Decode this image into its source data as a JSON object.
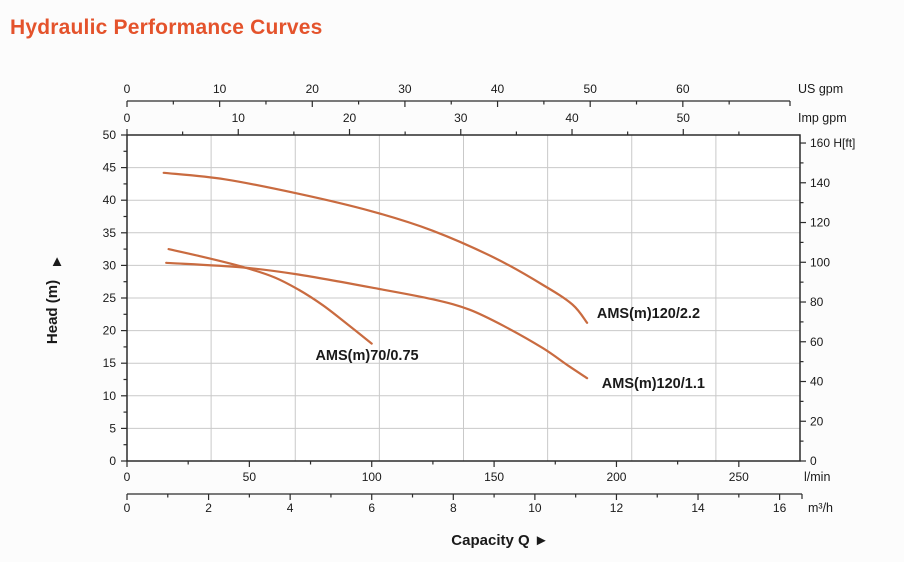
{
  "title": "Hydraulic Performance Curves",
  "colors": {
    "title": "#E4532C",
    "curve": "#C96B40",
    "grid": "#C9C9C9",
    "axis": "#2B2B2B",
    "text": "#1A1A1A",
    "background": "#FCFCFC",
    "plot_background": "#FFFFFF"
  },
  "chart_data": {
    "type": "line",
    "title": "Hydraulic Performance Curves",
    "xlabel": "Capacity Q",
    "xlabel_arrow": "►",
    "ylabel": "Head (m)",
    "ylabel_arrow": "▲",
    "xlim_lmin": [
      0,
      275
    ],
    "ylim_m": [
      0,
      50
    ],
    "grid": {
      "x_divisions": 8,
      "y_divisions": 10,
      "visible": true
    },
    "x_axes": [
      {
        "id": "us_gpm",
        "unit_label": "US gpm",
        "lmin_per_unit": 3.78541,
        "major_ticks": [
          0,
          10,
          20,
          30,
          40,
          50,
          60
        ],
        "minor_step": 5
      },
      {
        "id": "imp_gpm",
        "unit_label": "Imp gpm",
        "lmin_per_unit": 4.54609,
        "major_ticks": [
          0,
          10,
          20,
          30,
          40,
          50
        ],
        "minor_step": 5
      },
      {
        "id": "l_min",
        "unit_label": "l/min",
        "lmin_per_unit": 1,
        "major_ticks": [
          0,
          50,
          100,
          150,
          200,
          250
        ],
        "minor_step": 25
      },
      {
        "id": "m3_h",
        "unit_label": "m³/h",
        "lmin_per_unit": 16.6667,
        "major_ticks": [
          0,
          2,
          4,
          6,
          8,
          10,
          12,
          14,
          16
        ],
        "minor_step": 1
      }
    ],
    "y_axes": [
      {
        "id": "head_m",
        "unit_label": "Head (m)",
        "m_per_unit": 1,
        "major_ticks": [
          0,
          5,
          10,
          15,
          20,
          25,
          30,
          35,
          40,
          45,
          50
        ],
        "minor_step": 2.5
      },
      {
        "id": "head_ft",
        "unit_label": "H[ft]",
        "m_per_unit": 0.3048,
        "major_ticks": [
          0,
          20,
          40,
          60,
          80,
          100,
          120,
          140,
          160
        ],
        "minor_step": 10
      }
    ],
    "series": [
      {
        "name": "AMS(m)120/2.2",
        "points_lmin_m": [
          [
            15,
            44.2
          ],
          [
            40,
            43.2
          ],
          [
            70,
            41.0
          ],
          [
            100,
            38.3
          ],
          [
            125,
            35.3
          ],
          [
            150,
            31.2
          ],
          [
            170,
            27.0
          ],
          [
            182,
            24.0
          ],
          [
            188,
            21.2
          ]
        ],
        "label_at_lmin_m": [
          192,
          21.9
        ]
      },
      {
        "name": "AMS(m)120/1.1",
        "points_lmin_m": [
          [
            16,
            30.4
          ],
          [
            47,
            29.7
          ],
          [
            70,
            28.6
          ],
          [
            100,
            26.6
          ],
          [
            125,
            24.8
          ],
          [
            140,
            23.2
          ],
          [
            155,
            20.5
          ],
          [
            170,
            17.3
          ],
          [
            180,
            14.7
          ],
          [
            188,
            12.7
          ]
        ],
        "label_at_lmin_m": [
          194,
          11.2
        ]
      },
      {
        "name": "AMS(m)70/0.75",
        "points_lmin_m": [
          [
            17,
            32.5
          ],
          [
            30,
            31.4
          ],
          [
            47,
            29.8
          ],
          [
            60,
            28.2
          ],
          [
            70,
            26.3
          ],
          [
            80,
            23.9
          ],
          [
            90,
            21.0
          ],
          [
            100,
            18.0
          ]
        ],
        "label_at_lmin_m": [
          77,
          15.5
        ]
      }
    ]
  }
}
